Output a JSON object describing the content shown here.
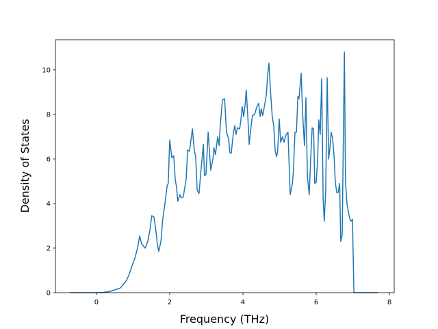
{
  "chart_data": {
    "type": "line",
    "xlabel": "Frequency (THz)",
    "ylabel": "Density of States",
    "x": [
      -0.73,
      0,
      0.17,
      0.36,
      0.64,
      0.73,
      0.82,
      0.9,
      0.97,
      1.05,
      1.12,
      1.18,
      1.23,
      1.33,
      1.4,
      1.46,
      1.51,
      1.57,
      1.63,
      1.66,
      1.7,
      1.76,
      1.81,
      1.87,
      1.93,
      1.96,
      2.0,
      2.06,
      2.11,
      2.15,
      2.19,
      2.22,
      2.28,
      2.32,
      2.37,
      2.45,
      2.49,
      2.54,
      2.62,
      2.67,
      2.71,
      2.75,
      2.8,
      2.86,
      2.92,
      2.95,
      2.99,
      3.05,
      3.12,
      3.18,
      3.21,
      3.25,
      3.31,
      3.35,
      3.38,
      3.44,
      3.5,
      3.55,
      3.61,
      3.64,
      3.68,
      3.74,
      3.78,
      3.81,
      3.85,
      3.91,
      3.94,
      3.98,
      4.02,
      4.06,
      4.09,
      4.13,
      4.17,
      4.21,
      4.26,
      4.32,
      4.37,
      4.43,
      4.47,
      4.5,
      4.54,
      4.6,
      4.64,
      4.67,
      4.71,
      4.75,
      4.8,
      4.84,
      4.88,
      4.92,
      4.95,
      4.99,
      5.03,
      5.08,
      5.12,
      5.18,
      5.23,
      5.29,
      5.35,
      5.38,
      5.42,
      5.46,
      5.5,
      5.53,
      5.59,
      5.63,
      5.68,
      5.72,
      5.76,
      5.81,
      5.85,
      5.89,
      5.93,
      5.96,
      6.0,
      6.04,
      6.07,
      6.11,
      6.15,
      6.19,
      6.22,
      6.26,
      6.3,
      6.34,
      6.37,
      6.41,
      6.45,
      6.49,
      6.52,
      6.56,
      6.6,
      6.64,
      6.67,
      6.71,
      6.77,
      6.8,
      6.84,
      6.88,
      6.92,
      6.95,
      6.99,
      7.03,
      7.68
    ],
    "series": [
      {
        "color": "#1f77b4",
        "values": [
          0,
          0,
          0.01,
          0.05,
          0.2,
          0.35,
          0.55,
          0.85,
          1.2,
          1.55,
          2.0,
          2.55,
          2.2,
          2.0,
          2.3,
          2.8,
          3.45,
          3.4,
          2.7,
          2.2,
          1.85,
          2.3,
          3.3,
          4.0,
          4.8,
          4.9,
          6.85,
          6.05,
          6.15,
          5.1,
          4.7,
          4.1,
          4.4,
          4.25,
          4.3,
          5.1,
          6.4,
          6.35,
          7.35,
          6.4,
          6.1,
          4.6,
          4.45,
          5.6,
          6.65,
          5.25,
          5.3,
          7.2,
          5.5,
          6.0,
          6.5,
          6.2,
          7.0,
          6.6,
          7.5,
          8.65,
          8.7,
          7.2,
          6.9,
          6.3,
          6.25,
          7.2,
          7.5,
          7.1,
          7.4,
          7.35,
          7.7,
          8.35,
          7.9,
          8.45,
          9.1,
          8.0,
          6.65,
          7.3,
          7.95,
          8.0,
          8.3,
          8.5,
          7.9,
          8.25,
          7.95,
          8.5,
          8.9,
          9.7,
          10.3,
          9.1,
          7.9,
          7.5,
          6.35,
          6.1,
          6.4,
          7.8,
          6.75,
          7.0,
          6.75,
          7.1,
          7.2,
          4.4,
          4.9,
          5.5,
          7.2,
          7.2,
          8.8,
          8.7,
          9.85,
          8.0,
          6.6,
          8.75,
          5.2,
          4.4,
          6.0,
          7.4,
          7.35,
          4.9,
          4.95,
          6.0,
          7.75,
          7.1,
          9.6,
          4.2,
          3.2,
          4.6,
          9.65,
          6.0,
          6.4,
          7.2,
          6.9,
          6.1,
          5.0,
          4.5,
          4.5,
          4.9,
          2.3,
          2.6,
          10.8,
          5.0,
          4.0,
          3.6,
          3.3,
          3.2,
          3.3,
          0,
          0
        ]
      }
    ],
    "xlim": [
      -1.12,
      8.13
    ],
    "ylim": [
      0,
      11.35
    ],
    "xticks": [
      0,
      2,
      4,
      6,
      8
    ],
    "yticks": [
      0,
      2,
      4,
      6,
      8,
      10
    ]
  }
}
